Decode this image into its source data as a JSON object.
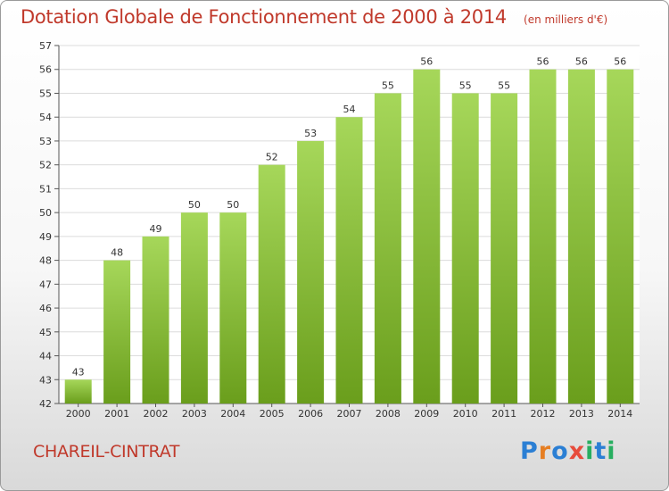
{
  "header": {
    "title": "Dotation Globale de Fonctionnement de 2000 à 2014",
    "subtitle": "(en milliers d'€)"
  },
  "footer": {
    "commune": "CHAREIL-CINTRAT",
    "logo_text": "Proxiti"
  },
  "colors": {
    "bar_top": "#a6d75a",
    "bar_bottom": "#6a9e1c",
    "title": "#c0392b",
    "grid": "#dcdcdc"
  },
  "chart_data": {
    "type": "bar",
    "title": "Dotation Globale de Fonctionnement de 2000 à 2014",
    "subtitle": "(en milliers d'€)",
    "categories": [
      "2000",
      "2001",
      "2002",
      "2003",
      "2004",
      "2005",
      "2006",
      "2007",
      "2008",
      "2009",
      "2010",
      "2011",
      "2012",
      "2013",
      "2014"
    ],
    "values": [
      43,
      48,
      49,
      50,
      50,
      52,
      53,
      54,
      55,
      56,
      55,
      55,
      56,
      56,
      56
    ],
    "ylim": [
      42,
      57
    ],
    "yticks": [
      42,
      43,
      44,
      45,
      46,
      47,
      48,
      49,
      50,
      51,
      52,
      53,
      54,
      55,
      56,
      57
    ],
    "grid": true,
    "data_labels": true
  }
}
